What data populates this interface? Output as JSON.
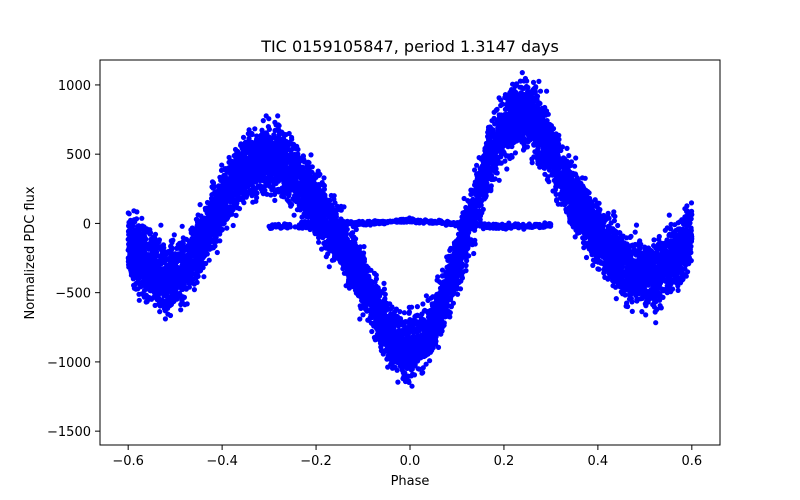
{
  "chart_data": {
    "type": "scatter",
    "title": "TIC 0159105847, period 1.3147 days",
    "xlabel": "Phase",
    "ylabel": "Normalized PDC flux",
    "xlim": [
      -0.66,
      0.66
    ],
    "ylim": [
      -1600,
      1180
    ],
    "xticks": [
      -0.6,
      -0.4,
      -0.2,
      0.0,
      0.2,
      0.4,
      0.6
    ],
    "xtick_labels": [
      "−0.6",
      "−0.4",
      "−0.2",
      "0.0",
      "0.2",
      "0.4",
      "0.6"
    ],
    "yticks": [
      1000,
      500,
      0,
      -500,
      -1000,
      -1500
    ],
    "ytick_labels": [
      "1000",
      "500",
      "0",
      "−500",
      "−1000",
      "−1500"
    ],
    "marker_color": "#0000ff",
    "series": [
      {
        "name": "phase-folded light curve",
        "x": [
          -0.6,
          -0.58,
          -0.56,
          -0.54,
          -0.52,
          -0.5,
          -0.48,
          -0.46,
          -0.44,
          -0.42,
          -0.4,
          -0.38,
          -0.36,
          -0.34,
          -0.32,
          -0.3,
          -0.28,
          -0.26,
          -0.24,
          -0.22,
          -0.2,
          -0.18,
          -0.16,
          -0.14,
          -0.12,
          -0.1,
          -0.08,
          -0.06,
          -0.04,
          -0.02,
          0.0,
          0.02,
          0.04,
          0.06,
          0.08,
          0.1,
          0.12,
          0.14,
          0.16,
          0.18,
          0.2,
          0.22,
          0.24,
          0.26,
          0.28,
          0.3,
          0.32,
          0.34,
          0.36,
          0.38,
          0.4,
          0.42,
          0.44,
          0.46,
          0.48,
          0.5,
          0.52,
          0.54,
          0.56,
          0.58,
          0.6
        ],
        "y": [
          -130,
          -220,
          -300,
          -350,
          -390,
          -380,
          -320,
          -230,
          -110,
          30,
          150,
          260,
          360,
          430,
          460,
          470,
          440,
          400,
          330,
          250,
          150,
          40,
          -60,
          -170,
          -290,
          -420,
          -560,
          -690,
          -800,
          -880,
          -900,
          -870,
          -780,
          -640,
          -470,
          -280,
          -60,
          160,
          380,
          560,
          700,
          780,
          800,
          760,
          660,
          530,
          380,
          240,
          110,
          0,
          -90,
          -170,
          -250,
          -310,
          -360,
          -380,
          -370,
          -320,
          -250,
          -180,
          -100
        ],
        "spread": [
          260,
          260,
          270,
          270,
          270,
          260,
          250,
          240,
          240,
          240,
          240,
          240,
          250,
          250,
          250,
          260,
          260,
          260,
          260,
          250,
          250,
          240,
          240,
          230,
          220,
          220,
          220,
          230,
          230,
          230,
          240,
          230,
          230,
          230,
          230,
          230,
          240,
          240,
          240,
          250,
          260,
          270,
          270,
          270,
          270,
          260,
          250,
          250,
          240,
          240,
          240,
          250,
          250,
          260,
          260,
          260,
          260,
          260,
          260,
          260,
          260
        ]
      },
      {
        "name": "flat baseline band",
        "x": [
          -0.3,
          -0.24,
          -0.18,
          -0.12,
          -0.06,
          0.0,
          0.06,
          0.12,
          0.18,
          0.24,
          0.3
        ],
        "y": [
          -20,
          -20,
          -10,
          0,
          10,
          20,
          10,
          -10,
          -20,
          -20,
          -10
        ],
        "spread": [
          20,
          20,
          20,
          20,
          15,
          15,
          15,
          20,
          20,
          20,
          20
        ]
      }
    ]
  }
}
